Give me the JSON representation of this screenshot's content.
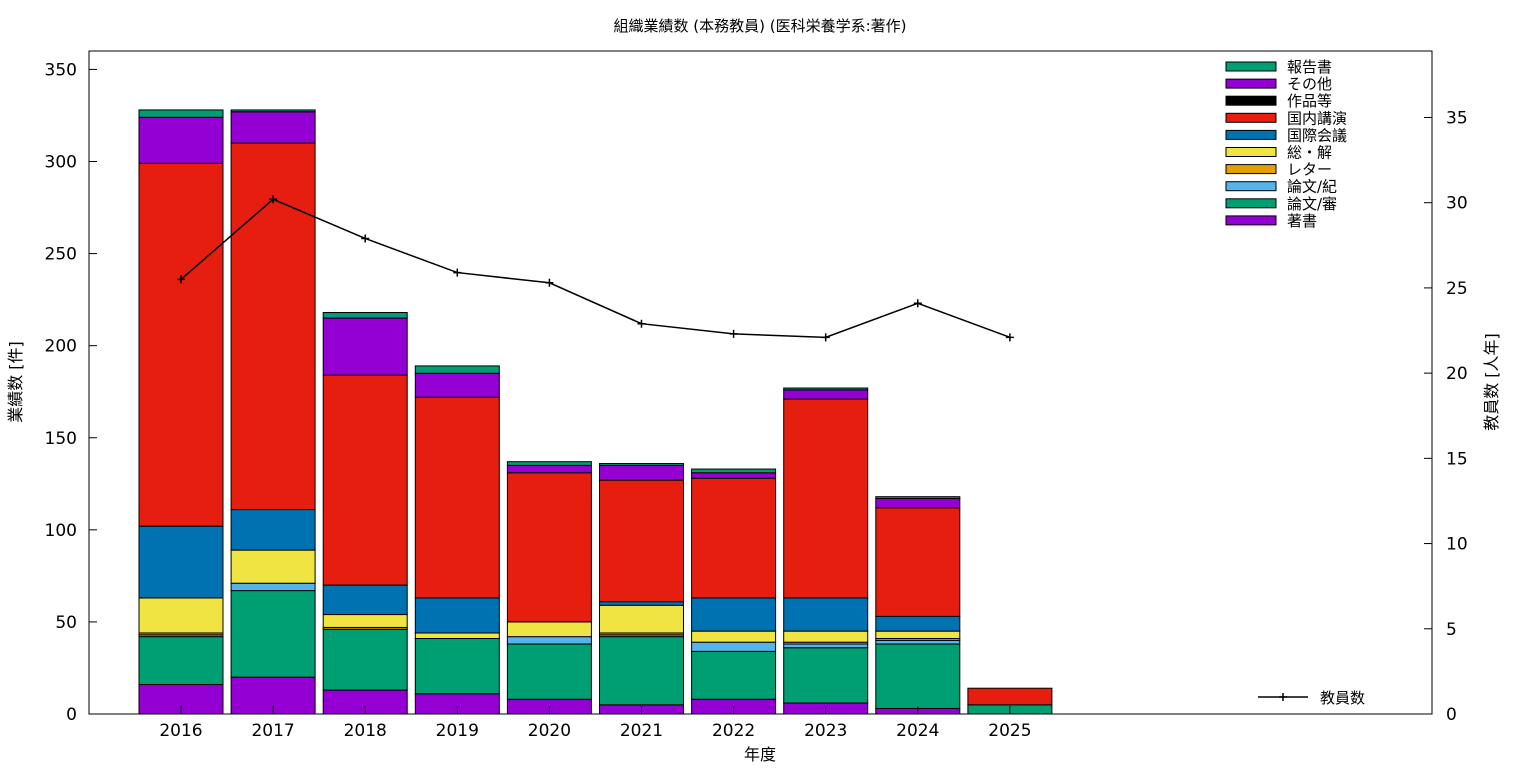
{
  "chart_data": {
    "type": "bar",
    "stacked": true,
    "title": "組織業績数 (本務教員) (医科栄養学系:著作)",
    "xlabel": "年度",
    "ylabel": "業績数 [件]",
    "y2label": "教員数 [人年]",
    "categories": [
      "2016",
      "2017",
      "2018",
      "2019",
      "2020",
      "2021",
      "2022",
      "2023",
      "2024",
      "2025"
    ],
    "ylim": [
      0,
      360
    ],
    "y2lim": [
      0,
      38.9
    ],
    "yticks": [
      0,
      50,
      100,
      150,
      200,
      250,
      300,
      350
    ],
    "y2ticks": [
      0,
      5,
      10,
      15,
      20,
      25,
      30,
      35
    ],
    "grid": false,
    "legend_position": "top-right",
    "series": [
      {
        "name": "著書",
        "color": "#9400d3",
        "values": [
          16,
          20,
          13,
          11,
          8,
          5,
          8,
          6,
          3,
          0
        ]
      },
      {
        "name": "論文/審",
        "color": "#009e73",
        "values": [
          26,
          47,
          33,
          30,
          30,
          37,
          26,
          30,
          35,
          5
        ]
      },
      {
        "name": "論文/紀",
        "color": "#56b4e9",
        "values": [
          1,
          4,
          0,
          0,
          4,
          1,
          5,
          2,
          2,
          0
        ]
      },
      {
        "name": "レター",
        "color": "#e69f00",
        "values": [
          1,
          0,
          1,
          0,
          0,
          1,
          0,
          1,
          1,
          0
        ]
      },
      {
        "name": "総・解",
        "color": "#f0e442",
        "values": [
          19,
          18,
          7,
          3,
          8,
          15,
          6,
          6,
          4,
          0
        ]
      },
      {
        "name": "国際会議",
        "color": "#0072b2",
        "values": [
          39,
          22,
          16,
          19,
          0,
          2,
          18,
          18,
          8,
          0
        ]
      },
      {
        "name": "国内講演",
        "color": "#e51e10",
        "values": [
          197,
          199,
          114,
          109,
          81,
          66,
          65,
          108,
          59,
          9
        ]
      },
      {
        "name": "作品等",
        "color": "#000000",
        "values": [
          0,
          0,
          0,
          0,
          0,
          0,
          0,
          0,
          0,
          0
        ]
      },
      {
        "name": "その他",
        "color": "#9400d3",
        "values": [
          25,
          17,
          31,
          13,
          4,
          8,
          3,
          5,
          5,
          0
        ]
      },
      {
        "name": "報告書",
        "color": "#009e73",
        "values": [
          4,
          1,
          3,
          4,
          2,
          1,
          2,
          1,
          1,
          0
        ]
      }
    ],
    "line_series": {
      "name": "教員数",
      "color": "#000000",
      "axis": "y2",
      "values": [
        25.5,
        30.2,
        27.9,
        25.9,
        25.3,
        22.9,
        22.3,
        22.1,
        24.1,
        22.1
      ]
    }
  }
}
